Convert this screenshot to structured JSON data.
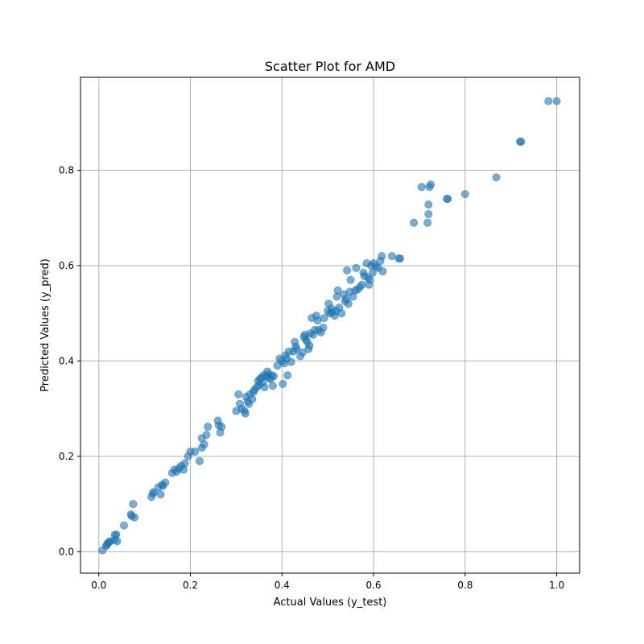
{
  "chart_data": {
    "type": "scatter",
    "title": "Scatter Plot for  AMD",
    "xlabel": "Actual Values (y_test)",
    "ylabel": "Predicted Values (y_pred)",
    "xlim": [
      -0.04,
      1.05
    ],
    "ylim": [
      -0.045,
      0.995
    ],
    "xticks": [
      0.0,
      0.2,
      0.4,
      0.6,
      0.8,
      1.0
    ],
    "xtick_labels": [
      "0.0",
      "0.2",
      "0.4",
      "0.6",
      "0.8",
      "1.0"
    ],
    "yticks": [
      0.0,
      0.2,
      0.4,
      0.6,
      0.8
    ],
    "ytick_labels": [
      "0.0",
      "0.2",
      "0.4",
      "0.6",
      "0.8"
    ],
    "grid": true,
    "marker_color": "#1f77b4",
    "marker_alpha": 0.6,
    "points": [
      [
        0.008,
        0.003
      ],
      [
        0.016,
        0.012
      ],
      [
        0.018,
        0.015
      ],
      [
        0.02,
        0.018
      ],
      [
        0.022,
        0.02
      ],
      [
        0.025,
        0.022
      ],
      [
        0.035,
        0.035
      ],
      [
        0.038,
        0.036
      ],
      [
        0.035,
        0.025
      ],
      [
        0.04,
        0.022
      ],
      [
        0.055,
        0.055
      ],
      [
        0.07,
        0.078
      ],
      [
        0.072,
        0.075
      ],
      [
        0.075,
        0.1
      ],
      [
        0.078,
        0.072
      ],
      [
        0.115,
        0.115
      ],
      [
        0.118,
        0.122
      ],
      [
        0.12,
        0.125
      ],
      [
        0.13,
        0.135
      ],
      [
        0.135,
        0.12
      ],
      [
        0.138,
        0.14
      ],
      [
        0.14,
        0.138
      ],
      [
        0.145,
        0.145
      ],
      [
        0.16,
        0.165
      ],
      [
        0.165,
        0.172
      ],
      [
        0.17,
        0.168
      ],
      [
        0.175,
        0.175
      ],
      [
        0.18,
        0.18
      ],
      [
        0.185,
        0.172
      ],
      [
        0.188,
        0.185
      ],
      [
        0.195,
        0.2
      ],
      [
        0.2,
        0.21
      ],
      [
        0.21,
        0.21
      ],
      [
        0.22,
        0.19
      ],
      [
        0.225,
        0.218
      ],
      [
        0.23,
        0.225
      ],
      [
        0.235,
        0.245
      ],
      [
        0.238,
        0.262
      ],
      [
        0.225,
        0.238
      ],
      [
        0.26,
        0.275
      ],
      [
        0.262,
        0.265
      ],
      [
        0.265,
        0.25
      ],
      [
        0.268,
        0.262
      ],
      [
        0.3,
        0.295
      ],
      [
        0.305,
        0.33
      ],
      [
        0.308,
        0.31
      ],
      [
        0.312,
        0.3
      ],
      [
        0.318,
        0.295
      ],
      [
        0.32,
        0.29
      ],
      [
        0.322,
        0.325
      ],
      [
        0.325,
        0.315
      ],
      [
        0.328,
        0.31
      ],
      [
        0.33,
        0.33
      ],
      [
        0.335,
        0.32
      ],
      [
        0.338,
        0.335
      ],
      [
        0.34,
        0.34
      ],
      [
        0.345,
        0.345
      ],
      [
        0.348,
        0.358
      ],
      [
        0.35,
        0.35
      ],
      [
        0.352,
        0.362
      ],
      [
        0.355,
        0.365
      ],
      [
        0.358,
        0.355
      ],
      [
        0.36,
        0.37
      ],
      [
        0.362,
        0.345
      ],
      [
        0.365,
        0.368
      ],
      [
        0.368,
        0.378
      ],
      [
        0.37,
        0.372
      ],
      [
        0.372,
        0.365
      ],
      [
        0.375,
        0.362
      ],
      [
        0.378,
        0.37
      ],
      [
        0.38,
        0.348
      ],
      [
        0.382,
        0.368
      ],
      [
        0.39,
        0.39
      ],
      [
        0.395,
        0.405
      ],
      [
        0.4,
        0.4
      ],
      [
        0.402,
        0.352
      ],
      [
        0.405,
        0.395
      ],
      [
        0.408,
        0.412
      ],
      [
        0.41,
        0.405
      ],
      [
        0.412,
        0.37
      ],
      [
        0.415,
        0.42
      ],
      [
        0.42,
        0.398
      ],
      [
        0.425,
        0.42
      ],
      [
        0.428,
        0.44
      ],
      [
        0.43,
        0.43
      ],
      [
        0.432,
        0.425
      ],
      [
        0.44,
        0.41
      ],
      [
        0.445,
        0.418
      ],
      [
        0.448,
        0.45
      ],
      [
        0.45,
        0.455
      ],
      [
        0.452,
        0.445
      ],
      [
        0.455,
        0.44
      ],
      [
        0.458,
        0.425
      ],
      [
        0.46,
        0.432
      ],
      [
        0.462,
        0.458
      ],
      [
        0.465,
        0.49
      ],
      [
        0.468,
        0.455
      ],
      [
        0.472,
        0.465
      ],
      [
        0.475,
        0.495
      ],
      [
        0.478,
        0.485
      ],
      [
        0.48,
        0.465
      ],
      [
        0.485,
        0.46
      ],
      [
        0.49,
        0.47
      ],
      [
        0.492,
        0.49
      ],
      [
        0.5,
        0.505
      ],
      [
        0.502,
        0.52
      ],
      [
        0.505,
        0.5
      ],
      [
        0.508,
        0.51
      ],
      [
        0.51,
        0.502
      ],
      [
        0.515,
        0.495
      ],
      [
        0.518,
        0.505
      ],
      [
        0.52,
        0.535
      ],
      [
        0.522,
        0.548
      ],
      [
        0.525,
        0.512
      ],
      [
        0.53,
        0.5
      ],
      [
        0.535,
        0.54
      ],
      [
        0.538,
        0.525
      ],
      [
        0.54,
        0.53
      ],
      [
        0.542,
        0.59
      ],
      [
        0.545,
        0.52
      ],
      [
        0.548,
        0.545
      ],
      [
        0.55,
        0.57
      ],
      [
        0.555,
        0.535
      ],
      [
        0.56,
        0.548
      ],
      [
        0.562,
        0.595
      ],
      [
        0.565,
        0.55
      ],
      [
        0.57,
        0.555
      ],
      [
        0.575,
        0.56
      ],
      [
        0.578,
        0.585
      ],
      [
        0.58,
        0.578
      ],
      [
        0.585,
        0.605
      ],
      [
        0.588,
        0.575
      ],
      [
        0.59,
        0.56
      ],
      [
        0.592,
        0.57
      ],
      [
        0.595,
        0.6
      ],
      [
        0.598,
        0.585
      ],
      [
        0.6,
        0.605
      ],
      [
        0.605,
        0.598
      ],
      [
        0.61,
        0.595
      ],
      [
        0.615,
        0.61
      ],
      [
        0.618,
        0.62
      ],
      [
        0.62,
        0.588
      ],
      [
        0.64,
        0.62
      ],
      [
        0.655,
        0.615
      ],
      [
        0.658,
        0.615
      ],
      [
        0.688,
        0.69
      ],
      [
        0.705,
        0.765
      ],
      [
        0.718,
        0.69
      ],
      [
        0.72,
        0.708
      ],
      [
        0.72,
        0.728
      ],
      [
        0.722,
        0.765
      ],
      [
        0.725,
        0.77
      ],
      [
        0.76,
        0.74
      ],
      [
        0.762,
        0.74
      ],
      [
        0.8,
        0.75
      ],
      [
        0.868,
        0.785
      ],
      [
        0.92,
        0.86
      ],
      [
        0.922,
        0.86
      ],
      [
        0.982,
        0.945
      ],
      [
        1.0,
        0.945
      ]
    ]
  }
}
